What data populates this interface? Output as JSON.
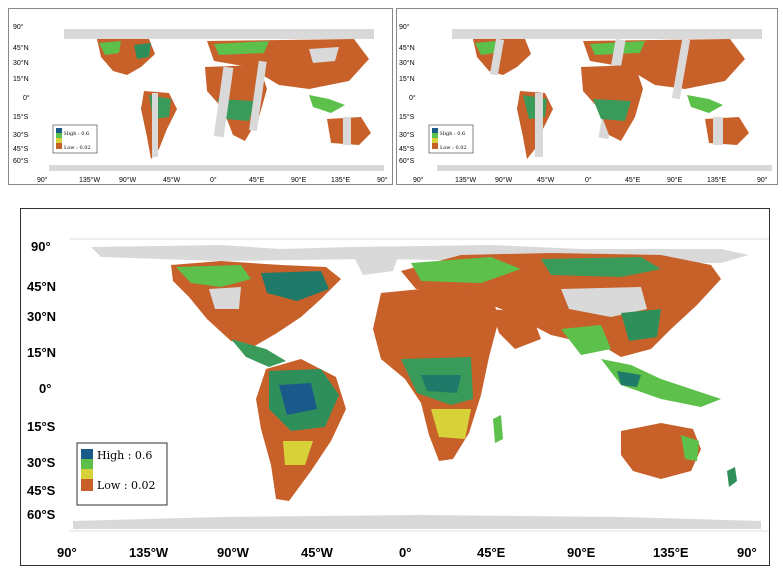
{
  "maps": [
    {
      "id": "top-left",
      "lat_labels": [
        "90°",
        "45°N",
        "30°N",
        "15°N",
        "0°",
        "15°S",
        "30°S",
        "45°S",
        "60°S"
      ],
      "lon_labels": [
        "90°",
        "135°W",
        "90°W",
        "45°W",
        "0°",
        "45°E",
        "90°E",
        "135°E",
        "90°"
      ],
      "legend": {
        "high": "High : 0.6",
        "low": "Low : 0.02"
      }
    },
    {
      "id": "top-right",
      "lat_labels": [
        "90°",
        "45°N",
        "30°N",
        "15°N",
        "0°",
        "15°S",
        "30°S",
        "45°S",
        "60°S"
      ],
      "lon_labels": [
        "90°",
        "135°W",
        "90°W",
        "45°W",
        "0°",
        "45°E",
        "90°E",
        "135°E",
        "90°"
      ],
      "legend": {
        "high": "High : 0.6",
        "low": "Low : 0.02"
      }
    },
    {
      "id": "main",
      "lat_labels": [
        "90°",
        "45°N",
        "30°N",
        "15°N",
        "0°",
        "15°S",
        "30°S",
        "45°S",
        "60°S"
      ],
      "lon_labels": [
        "90°",
        "135°W",
        "90°W",
        "45°W",
        "0°",
        "45°E",
        "90°E",
        "135°E",
        "90°"
      ],
      "legend": {
        "high": "High : 0.6",
        "low": "Low : 0.02"
      }
    }
  ],
  "colors": {
    "ocean": "#ffffff",
    "no_data": "#d9d9d9",
    "low": "#c8602a",
    "mid_low": "#e09a3a",
    "mid": "#d8d23a",
    "mid_high": "#5cc04a",
    "high": "#1a5a8a"
  }
}
